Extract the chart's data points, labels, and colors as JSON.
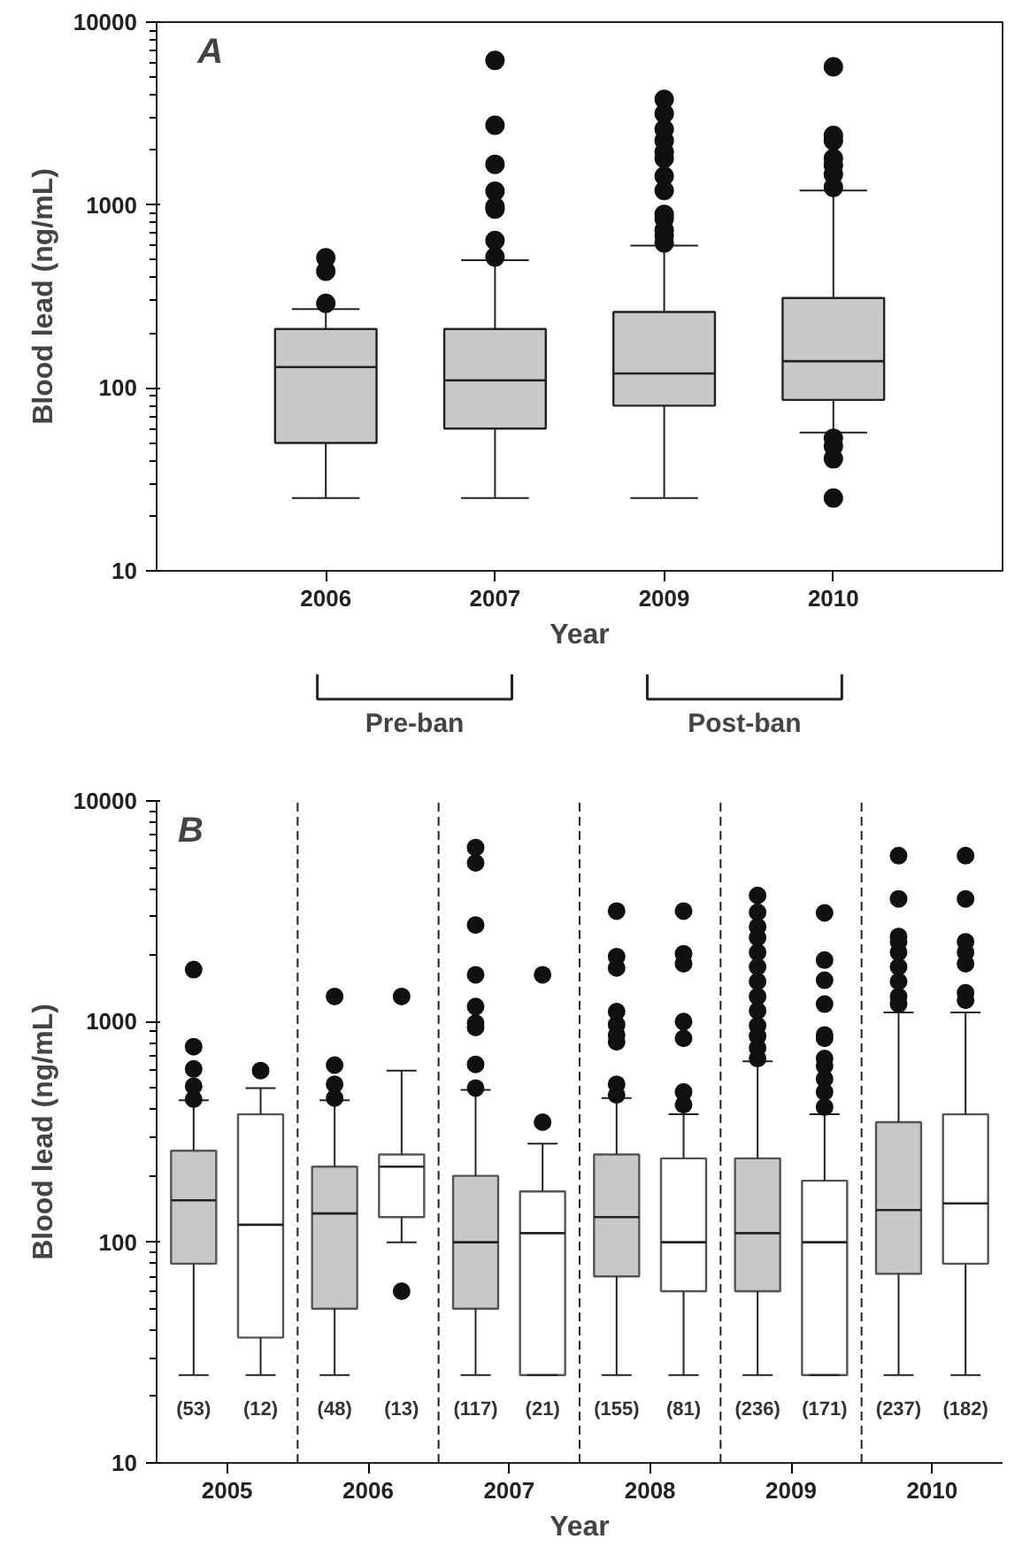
{
  "chart_data": [
    {
      "type": "box",
      "categories": [
        "2006",
        "2007",
        "2009",
        "2010"
      ],
      "xlabel": "Year",
      "ylabel": "Blood lead (ng/mL)",
      "log": true,
      "ylim": [
        10,
        10000
      ],
      "yticks": [
        10,
        100,
        1000,
        10000
      ],
      "grid": false,
      "annotations": [
        "A",
        "Pre-ban",
        "Post-ban"
      ],
      "series": [
        {
          "color": "#c8c8c8",
          "boxes": [
            {
              "low": 25,
              "q1": 50,
              "median": 130,
              "q3": 210,
              "high": 270,
              "outliers": [
                290,
                435,
                515
              ]
            },
            {
              "low": 25,
              "q1": 60,
              "median": 110,
              "q3": 210,
              "high": 500,
              "outliers": [
                520,
                640,
                950,
                980,
                1190,
                1670,
                2730,
                6170
              ]
            },
            {
              "low": 25,
              "q1": 80,
              "median": 120,
              "q3": 260,
              "high": 600,
              "outliers": [
                620,
                680,
                730,
                840,
                890,
                1200,
                1440,
                1800,
                1950,
                2250,
                2600,
                3160,
                3780
              ]
            },
            {
              "low": 57,
              "q1": 86,
              "median": 140,
              "q3": 310,
              "high": 1200,
              "outliers": [
                25,
                41,
                48,
                53,
                1250,
                1470,
                1650,
                1800,
                2250,
                2400,
                5700
              ]
            }
          ]
        }
      ]
    },
    {
      "type": "box",
      "categories": [
        "2005",
        "2006",
        "2007",
        "2008",
        "2009",
        "2010"
      ],
      "xlabel": "Year",
      "ylabel": "Blood lead (ng/mL)",
      "log": true,
      "ylim": [
        10,
        10000
      ],
      "yticks": [
        10,
        100,
        1000,
        10000
      ],
      "grid": false,
      "annotations": [
        "B"
      ],
      "series": [
        {
          "color": "#c8c8c8",
          "value_labels": [
            "(53)",
            "(48)",
            "(117)",
            "(155)",
            "(236)",
            "(237)"
          ],
          "boxes": [
            {
              "low": 25,
              "q1": 80,
              "median": 155,
              "q3": 260,
              "high": 440,
              "outliers": [
                445,
                510,
                610,
                770,
                1720
              ]
            },
            {
              "low": 25,
              "q1": 50,
              "median": 135,
              "q3": 220,
              "high": 440,
              "outliers": [
                450,
                520,
                635,
                1300
              ]
            },
            {
              "low": 25,
              "q1": 50,
              "median": 100,
              "q3": 200,
              "high": 490,
              "outliers": [
                500,
                640,
                940,
                985,
                1170,
                1630,
                2740,
                5240,
                6150
              ]
            },
            {
              "low": 25,
              "q1": 70,
              "median": 130,
              "q3": 250,
              "high": 450,
              "outliers": [
                465,
                520,
                810,
                870,
                970,
                1110,
                1750,
                1970,
                3170
              ]
            },
            {
              "low": 25,
              "q1": 60,
              "median": 110,
              "q3": 240,
              "high": 660,
              "outliers": [
                680,
                760,
                860,
                960,
                1120,
                1300,
                1520,
                1770,
                2060,
                2400,
                2690,
                3130,
                3730
              ]
            },
            {
              "low": 25,
              "q1": 72,
              "median": 140,
              "q3": 350,
              "high": 1100,
              "outliers": [
                1200,
                1300,
                1520,
                1770,
                2060,
                2300,
                2430,
                3600,
                5650
              ]
            }
          ]
        },
        {
          "color": "#ffffff",
          "value_labels": [
            "(12)",
            "(13)",
            "(21)",
            "(81)",
            "(171)",
            "(182)"
          ],
          "boxes": [
            {
              "low": 25,
              "q1": 37,
              "median": 120,
              "q3": 380,
              "high": 500,
              "outliers": [
                600
              ]
            },
            {
              "low": 100,
              "q1": 130,
              "median": 220,
              "q3": 250,
              "high": 600,
              "outliers": [
                60,
                1300
              ]
            },
            {
              "low": 25,
              "q1": 25,
              "median": 110,
              "q3": 170,
              "high": 280,
              "outliers": [
                350,
                1630
              ]
            },
            {
              "low": 25,
              "q1": 60,
              "median": 100,
              "q3": 240,
              "high": 380,
              "outliers": [
                420,
                480,
                840,
                1000,
                1830,
                2030,
                3170
              ]
            },
            {
              "low": 25,
              "q1": 25,
              "median": 100,
              "q3": 190,
              "high": 380,
              "outliers": [
                410,
                480,
                550,
                630,
                680,
                840,
                870,
                1200,
                1540,
                1900,
                3110
              ]
            },
            {
              "low": 25,
              "q1": 80,
              "median": 150,
              "q3": 380,
              "high": 1100,
              "outliers": [
                1250,
                1350,
                1830,
                2060,
                2300,
                3600,
                5650
              ]
            }
          ]
        }
      ]
    }
  ]
}
